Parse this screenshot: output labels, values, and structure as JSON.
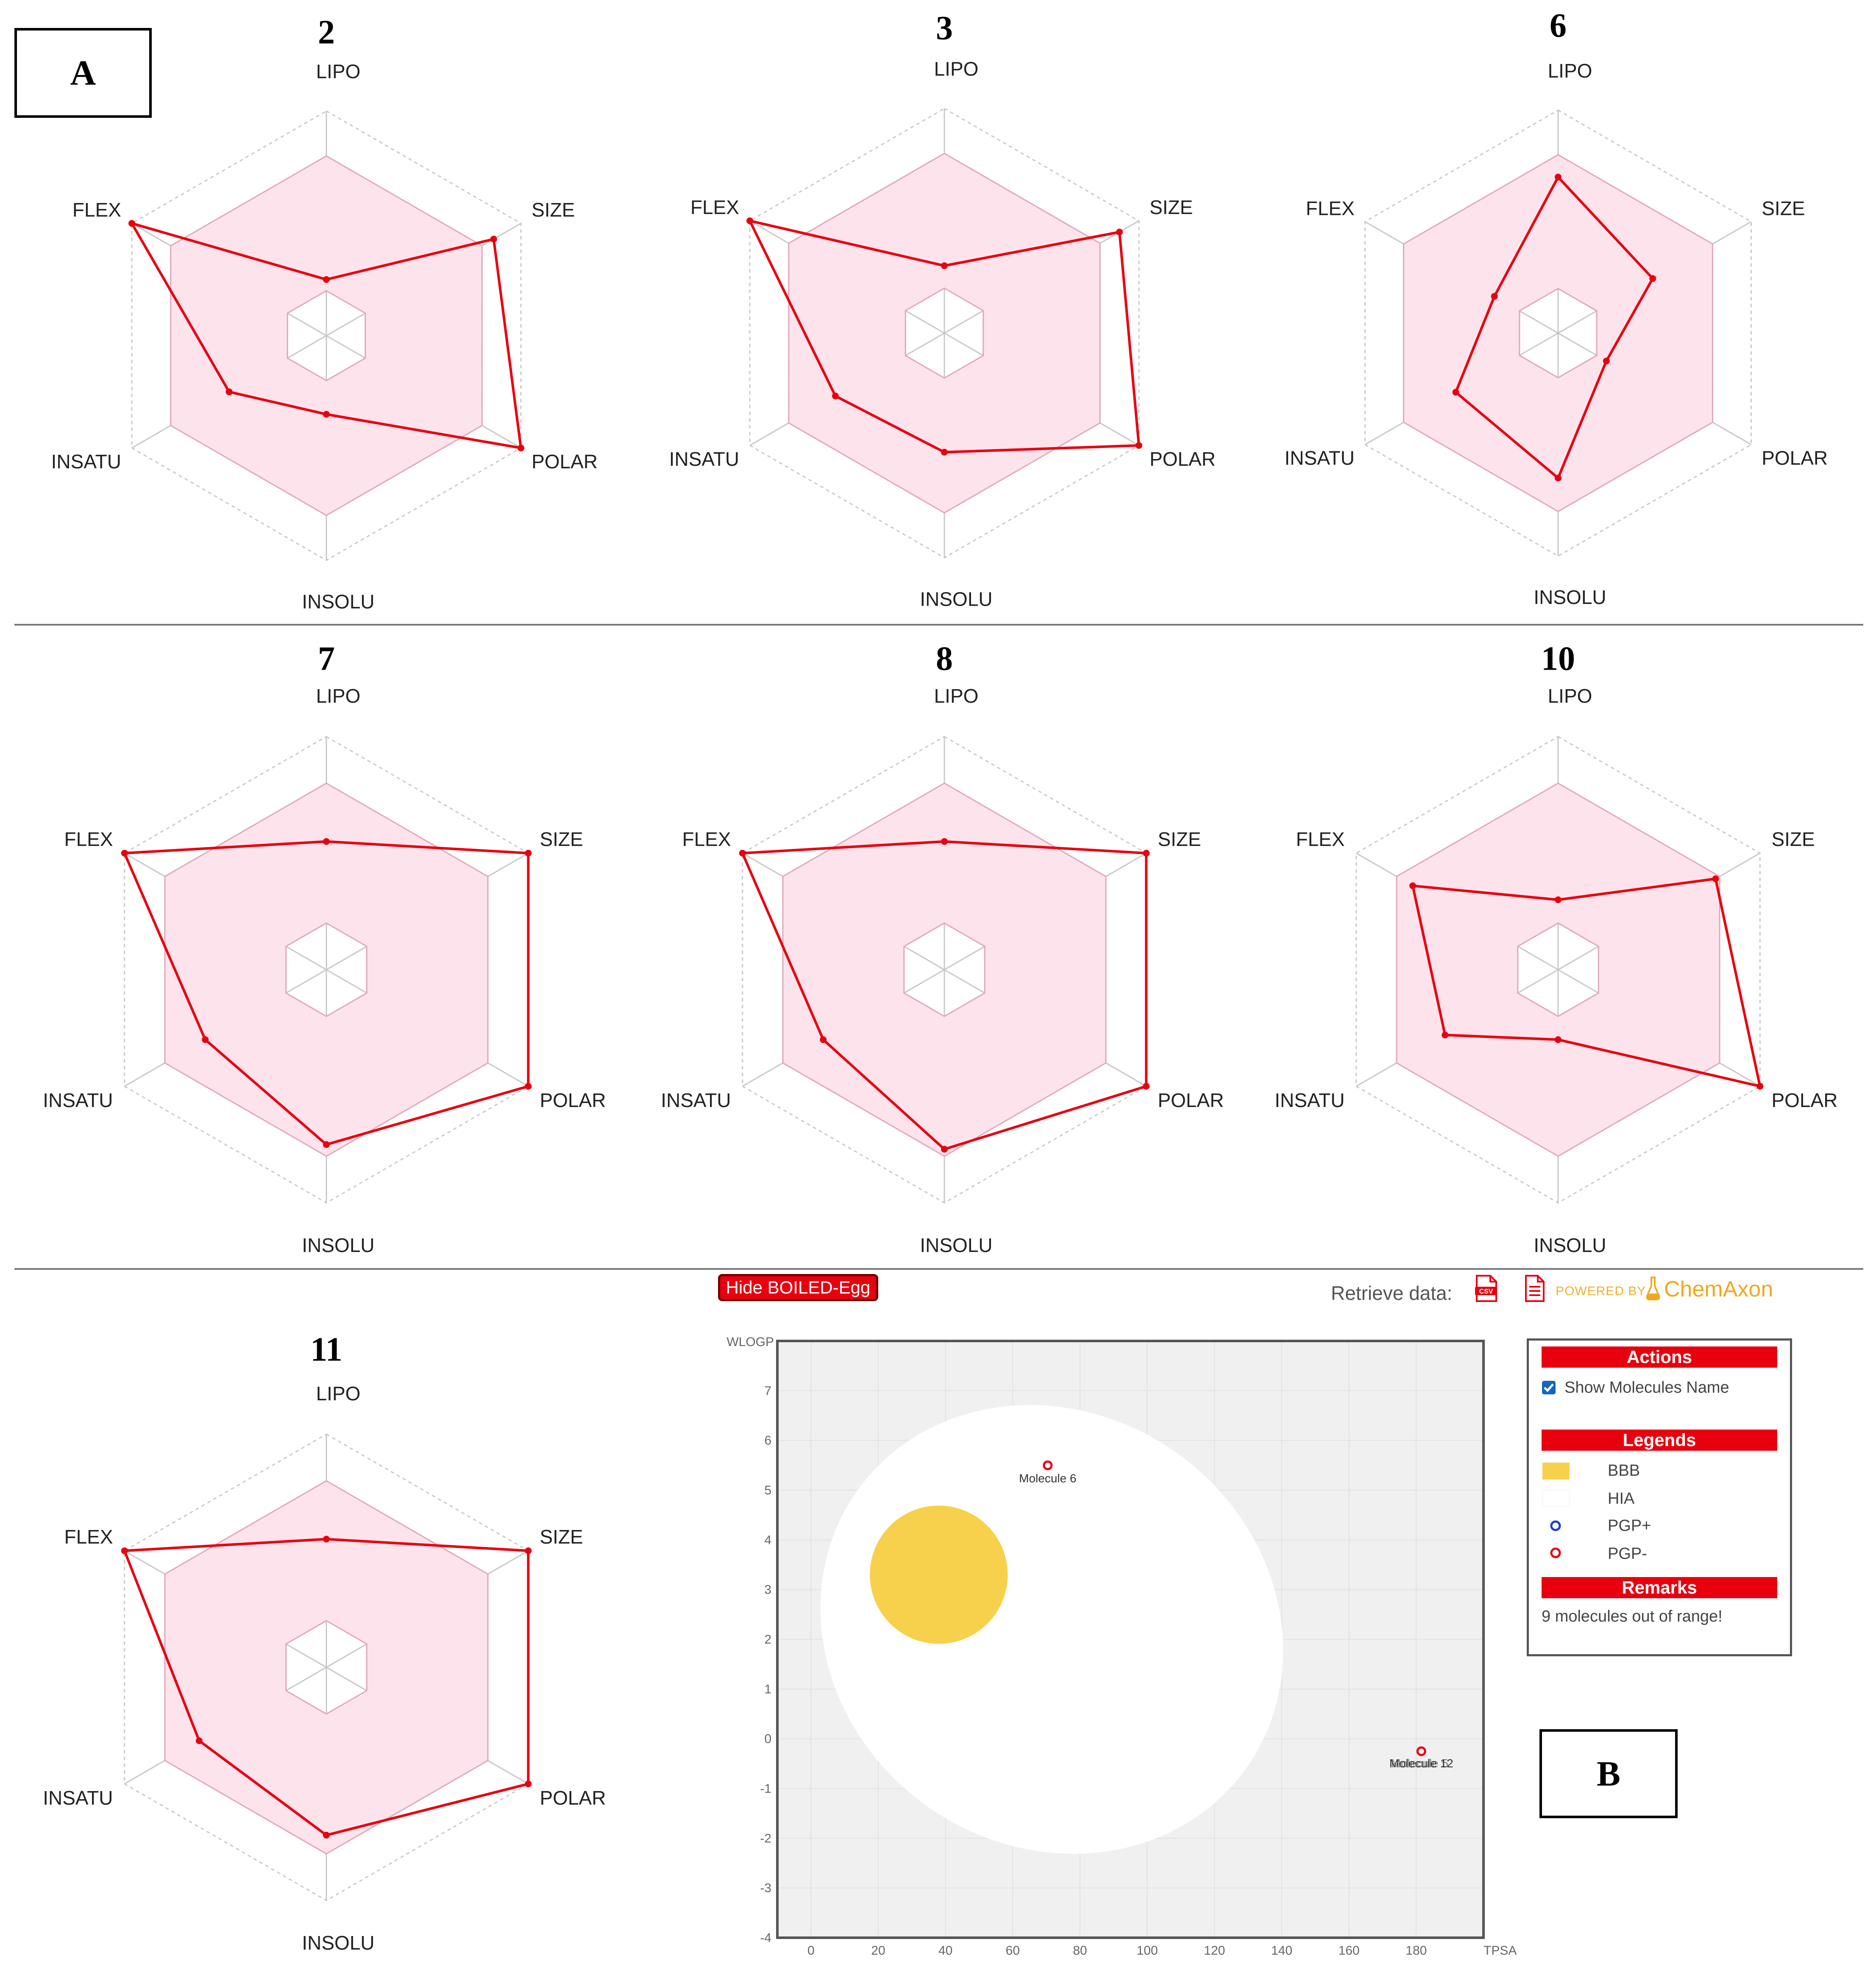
{
  "panel_labels": {
    "a": "A",
    "b": "B"
  },
  "radar_axes": [
    "LIPO",
    "SIZE",
    "POLAR",
    "INSOLU",
    "INSATU",
    "FLEX"
  ],
  "chart_data": [
    {
      "type": "radar",
      "title": "2",
      "axes": [
        "LIPO",
        "SIZE",
        "POLAR",
        "INSOLU",
        "INSATU",
        "FLEX"
      ],
      "values": [
        0.25,
        0.86,
        1.0,
        0.35,
        0.5,
        1.0
      ]
    },
    {
      "type": "radar",
      "title": "3",
      "axes": [
        "LIPO",
        "SIZE",
        "POLAR",
        "INSOLU",
        "INSATU",
        "FLEX"
      ],
      "values": [
        0.3,
        0.9,
        1.0,
        0.53,
        0.56,
        1.0
      ]
    },
    {
      "type": "radar",
      "title": "6",
      "axes": [
        "LIPO",
        "SIZE",
        "POLAR",
        "INSOLU",
        "INSATU",
        "FLEX"
      ],
      "values": [
        0.7,
        0.49,
        0.25,
        0.65,
        0.53,
        0.33
      ]
    },
    {
      "type": "radar",
      "title": "7",
      "axes": [
        "LIPO",
        "SIZE",
        "POLAR",
        "INSOLU",
        "INSATU",
        "FLEX"
      ],
      "values": [
        0.55,
        1.0,
        1.0,
        0.75,
        0.6,
        1.0
      ]
    },
    {
      "type": "radar",
      "title": "8",
      "axes": [
        "LIPO",
        "SIZE",
        "POLAR",
        "INSOLU",
        "INSATU",
        "FLEX"
      ],
      "values": [
        0.55,
        1.0,
        1.0,
        0.77,
        0.6,
        1.0
      ]
    },
    {
      "type": "radar",
      "title": "10",
      "axes": [
        "LIPO",
        "SIZE",
        "POLAR",
        "INSOLU",
        "INSATU",
        "FLEX"
      ],
      "values": [
        0.3,
        0.78,
        1.0,
        0.3,
        0.56,
        0.72
      ]
    },
    {
      "type": "radar",
      "title": "11",
      "axes": [
        "LIPO",
        "SIZE",
        "POLAR",
        "INSOLU",
        "INSATU",
        "FLEX"
      ],
      "values": [
        0.55,
        1.0,
        1.0,
        0.72,
        0.63,
        1.0
      ]
    },
    {
      "type": "scatter",
      "xlabel": "TPSA",
      "ylabel": "WLOGP",
      "xlim": [
        -10,
        200
      ],
      "ylim": [
        -4,
        8
      ],
      "xticks": [
        0,
        20,
        40,
        60,
        80,
        100,
        120,
        140,
        160,
        180
      ],
      "yticks": [
        -4,
        -3,
        -2,
        -1,
        0,
        1,
        2,
        3,
        4,
        5,
        6,
        7
      ],
      "regions": [
        {
          "name": "HIA",
          "cx": 71.6,
          "cy": 2.2,
          "rx": 142.1,
          "ry": 8.7,
          "rotate_deg": -36,
          "color": "#ffffff"
        },
        {
          "name": "BBB",
          "cx": 38.0,
          "cy": 3.3,
          "rx": 41.0,
          "ry": 2.78,
          "color": "#f7d14c"
        }
      ],
      "points": [
        {
          "label": "Molecule 6",
          "x": 70.4,
          "y": 5.5,
          "class": "PGP-"
        },
        {
          "label": "Molecule 12",
          "x": 181.5,
          "y": -0.25,
          "class": "PGP-"
        }
      ],
      "point_label_text": "Molecule 6",
      "overlap_label_text": "Molecule 12",
      "overlap_label_ghost": "Molecule 5"
    }
  ],
  "boiled_egg": {
    "hide_button": "Hide BOILED-Egg",
    "retrieve_label": "Retrieve data:",
    "csv_icon": "csv-file-icon",
    "doc_icon": "document-icon",
    "powered_by": "POWERED BY",
    "brand": "ChemAxon",
    "actions_title": "Actions",
    "show_names_label": "Show Molecules Name",
    "show_names_checked": true,
    "legends_title": "Legends",
    "legend_items": [
      {
        "label": "BBB",
        "color": "#f7d14c",
        "kind": "swatch"
      },
      {
        "label": "HIA",
        "color": "#ffffff",
        "kind": "swatch"
      },
      {
        "label": "PGP+",
        "color": "#1a3ad6",
        "kind": "circle"
      },
      {
        "label": "PGP-",
        "color": "#e8000f",
        "kind": "circle"
      }
    ],
    "remarks_title": "Remarks",
    "remarks_text": "9 molecules out of range!"
  },
  "colors": {
    "radar_line": "#e8000f",
    "radar_fill": "#fde3ec",
    "radar_fill_stroke": "#e2a7b9",
    "grid": "#c8c8c8",
    "egg_bg": "#f0f0f0"
  }
}
